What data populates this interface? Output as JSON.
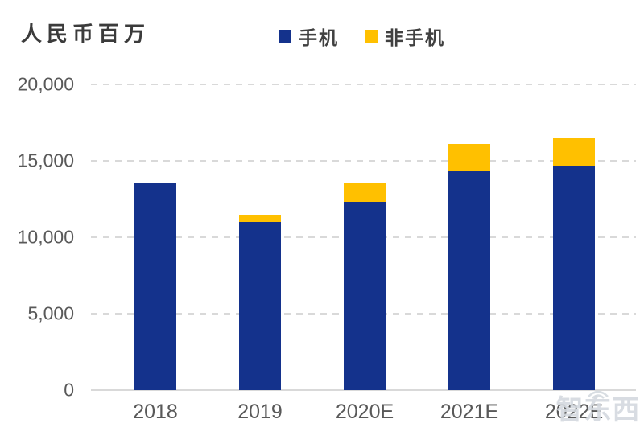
{
  "title": {
    "unit_label": "人民币百万"
  },
  "legend": [
    {
      "label": "手机",
      "color": "#14328C"
    },
    {
      "label": "非手机",
      "color": "#FFC000"
    }
  ],
  "chart_data": {
    "type": "bar",
    "stacked": true,
    "title": "",
    "ylabel": "人民币百万",
    "xlabel": "",
    "categories": [
      "2018",
      "2019",
      "2020E",
      "2021E",
      "2022E"
    ],
    "series": [
      {
        "name": "手机",
        "color": "#14328C",
        "values": [
          13600,
          11000,
          12300,
          14300,
          14700
        ]
      },
      {
        "name": "非手机",
        "color": "#FFC000",
        "values": [
          0,
          480,
          1250,
          1800,
          1850
        ]
      }
    ],
    "ylim": [
      0,
      20000
    ],
    "yticks": [
      0,
      5000,
      10000,
      15000,
      20000
    ],
    "ytick_labels": [
      "0",
      "5,000",
      "10,000",
      "15,000",
      "20,000"
    ],
    "grid": "horizontal-dashed",
    "legend_position": "top-center"
  },
  "watermark": {
    "text": "智东西",
    "icon": "wifi-icon"
  },
  "colors": {
    "phone_bar": "#14328C",
    "non_phone_bar": "#FFC000",
    "gridline": "#D9D9D9",
    "axis_text": "#595959",
    "title_text": "#3B3B3B"
  }
}
